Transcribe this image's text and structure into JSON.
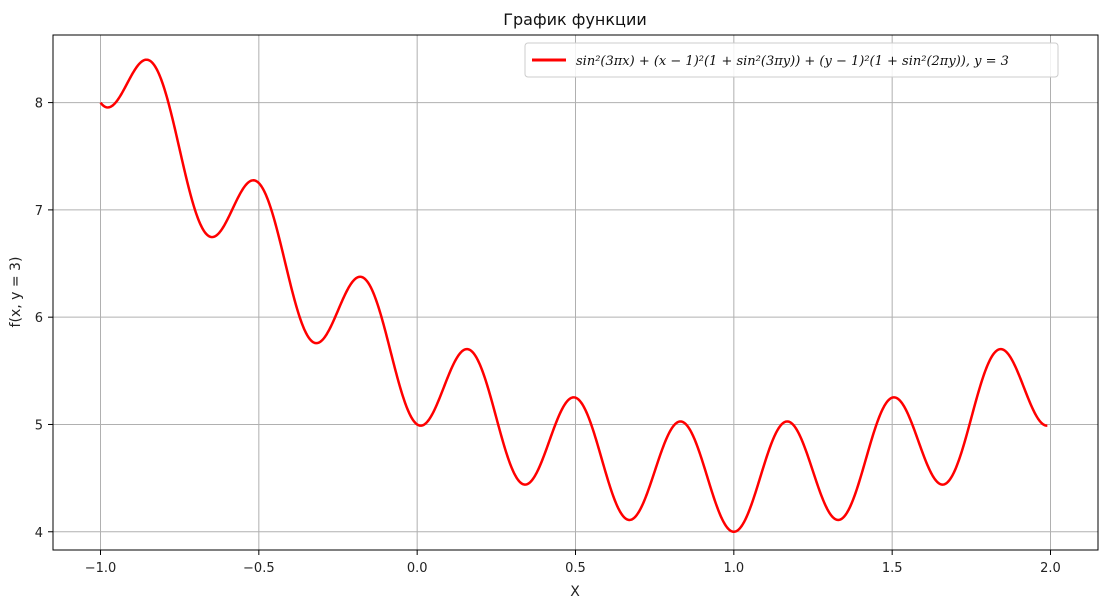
{
  "chart_data": {
    "type": "line",
    "title": "График функции",
    "xlabel": "X",
    "ylabel": "f(x, y = 3)",
    "xlim": [
      -1.15,
      2.15
    ],
    "ylim": [
      3.83,
      8.63
    ],
    "xticks": [
      -1.0,
      -0.5,
      0.0,
      0.5,
      1.0,
      1.5,
      2.0
    ],
    "xtick_labels": [
      "−1.0",
      "−0.5",
      "0.0",
      "0.5",
      "1.0",
      "1.5",
      "2.0"
    ],
    "yticks": [
      4,
      5,
      6,
      7,
      8
    ],
    "ytick_labels": [
      "4",
      "5",
      "6",
      "7",
      "8"
    ],
    "grid": true,
    "legend_position": "top-right",
    "series": [
      {
        "name": "sin²(3πx) + (x − 1)²(1 + sin²(3πy)) + (y − 1)²(1 + sin²(2πy)), y = 3",
        "color": "#ff0000",
        "x_range": [
          -1.0,
          1.99
        ],
        "x": [
          -1.0,
          -0.95,
          -0.85,
          -0.65,
          -0.52,
          -0.32,
          -0.18,
          0.0,
          0.16,
          0.34,
          0.49,
          0.67,
          0.83,
          1.0,
          1.17,
          1.33,
          1.51,
          1.66,
          1.84,
          1.99
        ],
        "y": [
          8.0,
          7.97,
          8.4,
          6.76,
          7.27,
          5.77,
          6.38,
          5.0,
          5.7,
          4.45,
          5.25,
          4.12,
          5.02,
          4.0,
          5.02,
          4.12,
          5.25,
          4.45,
          5.7,
          5.0
        ]
      }
    ]
  },
  "colors": {
    "line": "#ff0000",
    "grid": "#b0b0b0",
    "axes": "#000000"
  }
}
